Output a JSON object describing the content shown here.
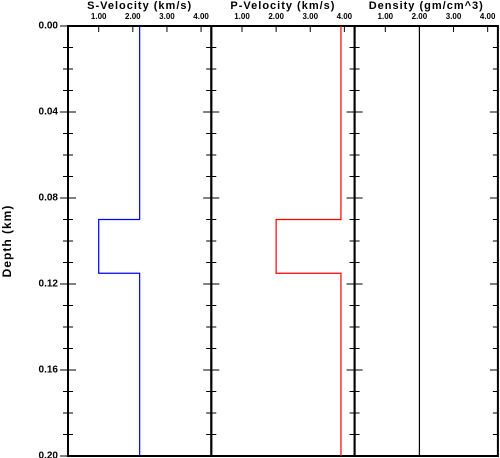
{
  "chart_data": [
    {
      "type": "line",
      "title": "S-Velocity (km/s)",
      "ylabel": "Depth (km)",
      "color": "#0000ff",
      "x": [
        2.2,
        2.2,
        1.0,
        1.0,
        2.2,
        2.2
      ],
      "y": [
        0,
        0.09,
        0.09,
        0.115,
        0.115,
        0.2
      ],
      "xlim": [
        0.1,
        4.3
      ],
      "xticks": [
        {
          "value": 1,
          "label": "1.00"
        },
        {
          "value": 2,
          "label": "2.00"
        },
        {
          "value": 3,
          "label": "3.00"
        },
        {
          "value": 4,
          "label": "4.00"
        }
      ],
      "ylim": [
        0,
        0.2
      ],
      "yticks": [
        {
          "value": 0,
          "label": "0.00"
        },
        0.04,
        0.08,
        0.12,
        0.16,
        {
          "value": 0.2,
          "label": "0.20"
        }
      ],
      "yticks_minor": [
        0.01,
        0.02,
        0.03,
        0.05,
        0.06,
        0.07,
        0.09,
        0.1,
        0.11,
        0.13,
        0.14,
        0.15,
        0.17,
        0.18,
        0.19
      ]
    },
    {
      "type": "line",
      "title": "P-Velocity (km/s)",
      "color": "#ff0000",
      "x": [
        3.9,
        3.9,
        2.0,
        2.0,
        3.9,
        3.9
      ],
      "y": [
        0,
        0.09,
        0.09,
        0.115,
        0.115,
        0.2
      ],
      "xlim": [
        0.1,
        4.3
      ],
      "xticks": [
        {
          "value": 1,
          "label": "1.00"
        },
        {
          "value": 2,
          "label": "2.00"
        },
        {
          "value": 3,
          "label": "3.00"
        },
        {
          "value": 4,
          "label": "4.00"
        }
      ],
      "ylim": [
        0,
        0.2
      ]
    },
    {
      "type": "line",
      "title": "Density (gm/cm^3)",
      "color": "#000000",
      "x": [
        2.0,
        2.0
      ],
      "y": [
        0,
        0.2
      ],
      "xlim": [
        0.1,
        4.3
      ],
      "xticks": [
        {
          "value": 1,
          "label": "1.00"
        },
        {
          "value": 2,
          "label": "2.00"
        },
        {
          "value": 3,
          "label": "3.00"
        },
        {
          "value": 4,
          "label": "4.00"
        }
      ],
      "ylim": [
        0,
        0.2
      ]
    }
  ]
}
